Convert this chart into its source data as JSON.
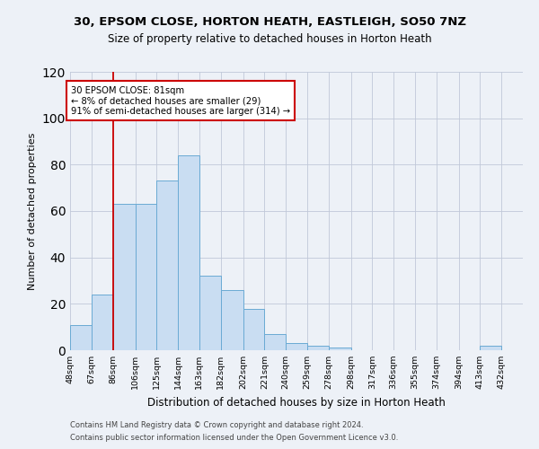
{
  "title1": "30, EPSOM CLOSE, HORTON HEATH, EASTLEIGH, SO50 7NZ",
  "title2": "Size of property relative to detached houses in Horton Heath",
  "xlabel": "Distribution of detached houses by size in Horton Heath",
  "ylabel": "Number of detached properties",
  "footnote1": "Contains HM Land Registry data © Crown copyright and database right 2024.",
  "footnote2": "Contains public sector information licensed under the Open Government Licence v3.0.",
  "bar_color": "#c9ddf2",
  "bar_edge_color": "#6aaad4",
  "grid_color": "#c0c8d8",
  "annotation_text": "30 EPSOM CLOSE: 81sqm\n← 8% of detached houses are smaller (29)\n91% of semi-detached houses are larger (314) →",
  "annotation_box_color": "#ffffff",
  "annotation_box_edge": "#cc0000",
  "vline_x": 86,
  "vline_color": "#cc0000",
  "categories": [
    "48sqm",
    "67sqm",
    "86sqm",
    "106sqm",
    "125sqm",
    "144sqm",
    "163sqm",
    "182sqm",
    "202sqm",
    "221sqm",
    "240sqm",
    "259sqm",
    "278sqm",
    "298sqm",
    "317sqm",
    "336sqm",
    "355sqm",
    "374sqm",
    "394sqm",
    "413sqm",
    "432sqm"
  ],
  "bin_edges": [
    48,
    67,
    86,
    106,
    125,
    144,
    163,
    182,
    202,
    221,
    240,
    259,
    278,
    298,
    317,
    336,
    355,
    374,
    394,
    413,
    432,
    451
  ],
  "values": [
    11,
    24,
    63,
    63,
    73,
    84,
    32,
    26,
    18,
    7,
    3,
    2,
    1,
    0,
    0,
    0,
    0,
    0,
    0,
    2,
    0
  ],
  "ylim": [
    0,
    120
  ],
  "yticks": [
    0,
    20,
    40,
    60,
    80,
    100,
    120
  ],
  "bg_color": "#edf1f7",
  "plot_bg_color": "#edf1f7"
}
